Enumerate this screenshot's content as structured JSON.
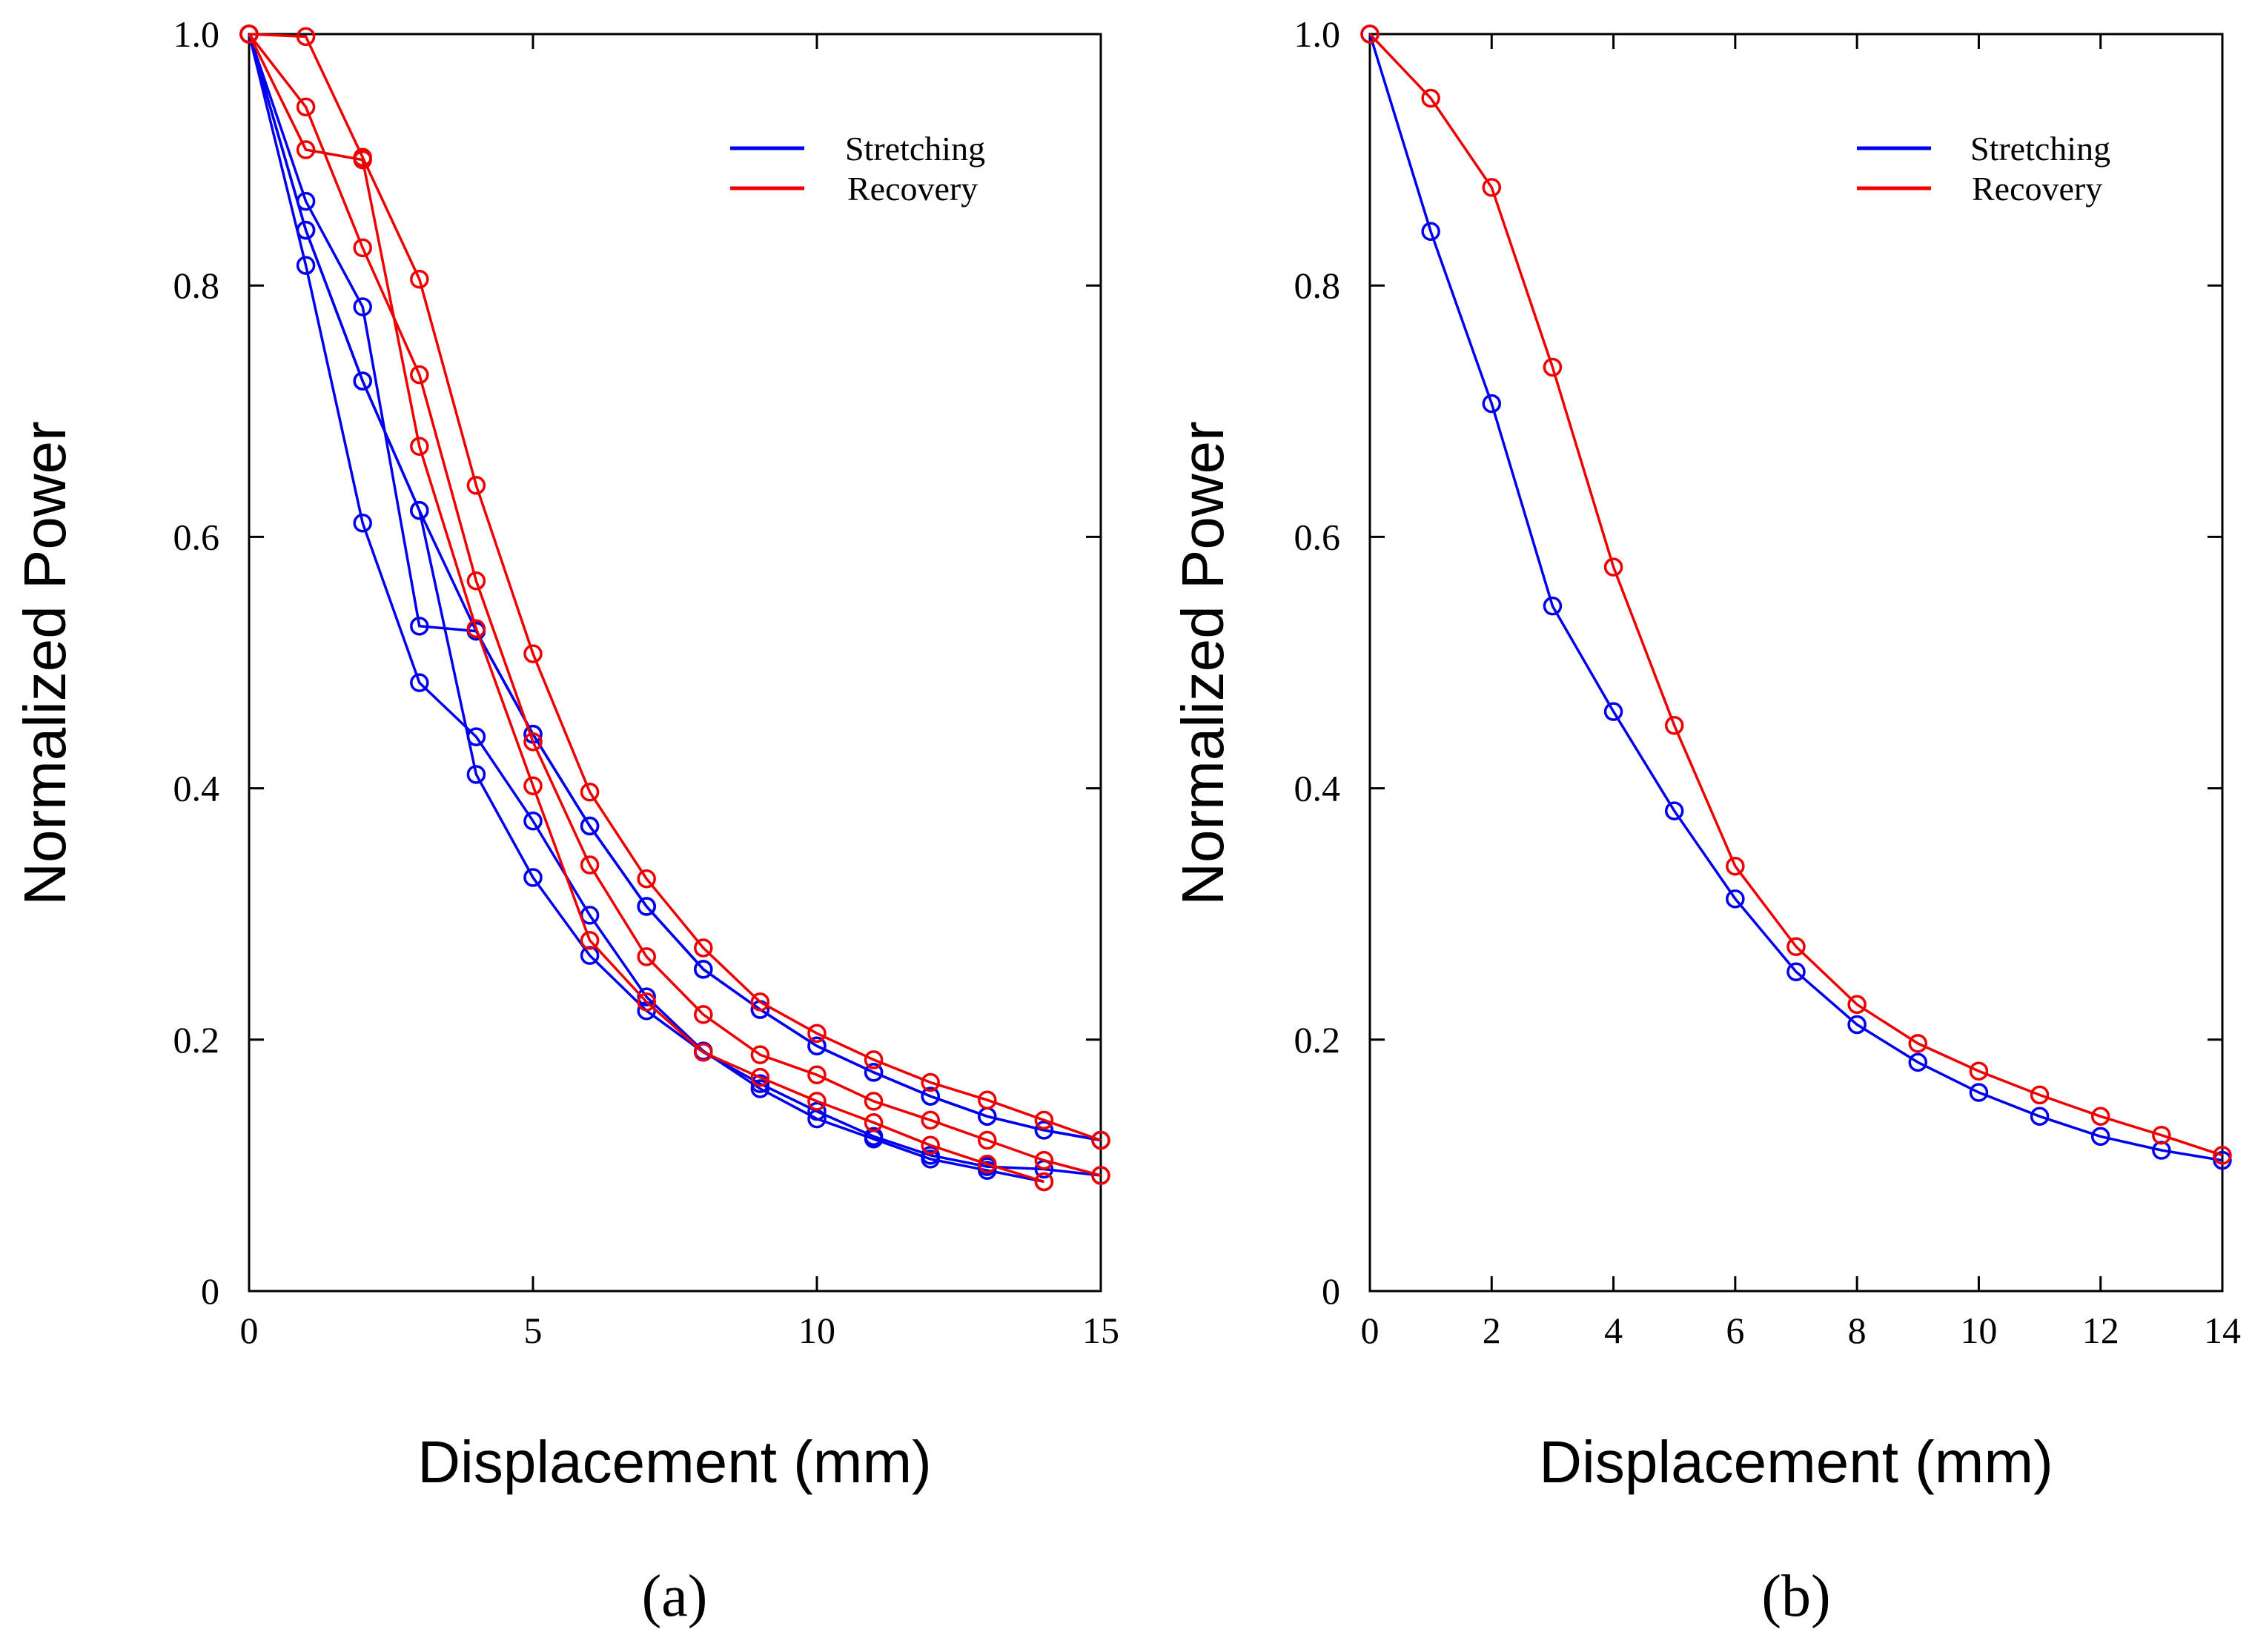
{
  "colors": {
    "stretching": "#0000ee",
    "recovery": "#ee0000"
  },
  "chart_data": [
    {
      "type": "line",
      "caption": "(a)",
      "xlabel": "Displacement (mm)",
      "ylabel": "Normalized Power",
      "xlim": [
        0,
        15
      ],
      "ylim": [
        0,
        1.0
      ],
      "xticks": [
        0,
        5,
        10,
        15
      ],
      "yticks": [
        0,
        0.2,
        0.4,
        0.6,
        0.8,
        1.0
      ],
      "ytick_labels": [
        "0",
        "0.2",
        "0.4",
        "0.6",
        "0.8",
        "1.0"
      ],
      "xtick_labels": [
        "0",
        "5",
        "10",
        "15"
      ],
      "legend": {
        "position": "top-right",
        "entries": [
          "Stretching",
          "Recovery"
        ]
      },
      "series": [
        {
          "name": "Stretching",
          "group": "stretching",
          "x": [
            0,
            1,
            2,
            3,
            4,
            5,
            6,
            7,
            8,
            9,
            10,
            11,
            12,
            13,
            14,
            15
          ],
          "y": [
            1.0,
            0.867,
            0.783,
            0.529,
            0.525,
            0.443,
            0.37,
            0.306,
            0.256,
            0.224,
            0.195,
            0.174,
            0.155,
            0.139,
            0.128,
            0.12
          ]
        },
        {
          "name": "Stretching",
          "group": "stretching",
          "x": [
            0,
            1,
            2,
            3,
            4,
            5,
            6,
            7,
            8,
            9,
            10,
            11,
            12,
            13,
            14,
            15
          ],
          "y": [
            1.0,
            0.844,
            0.724,
            0.621,
            0.525,
            0.443,
            0.37,
            0.306,
            0.256,
            0.224,
            0.195,
            0.174,
            0.155,
            0.139,
            0.128,
            0.12
          ]
        },
        {
          "name": "Stretching",
          "group": "stretching",
          "x": [
            0,
            1,
            2,
            3,
            4,
            5,
            6,
            7,
            8,
            9,
            10,
            11,
            12,
            13,
            14
          ],
          "y": [
            1.0,
            0.816,
            0.611,
            0.484,
            0.441,
            0.374,
            0.299,
            0.234,
            0.191,
            0.161,
            0.137,
            0.121,
            0.105,
            0.096,
            0.087
          ]
        },
        {
          "name": "Stretching",
          "group": "stretching",
          "x": [
            0,
            1,
            2,
            3,
            4,
            5,
            6,
            7,
            8,
            9,
            10,
            11,
            12,
            13,
            14,
            15
          ],
          "y": [
            1.0,
            0.844,
            0.724,
            0.621,
            0.411,
            0.329,
            0.267,
            0.223,
            0.19,
            0.165,
            0.143,
            0.123,
            0.108,
            0.099,
            0.097,
            0.092
          ]
        },
        {
          "name": "Recovery",
          "group": "recovery",
          "x": [
            0,
            1,
            2,
            3,
            4,
            5,
            6,
            7,
            8,
            9,
            10,
            11,
            12,
            13,
            14,
            15
          ],
          "y": [
            1.0,
            0.998,
            0.902,
            0.805,
            0.641,
            0.507,
            0.397,
            0.328,
            0.273,
            0.23,
            0.205,
            0.184,
            0.166,
            0.152,
            0.136,
            0.12
          ]
        },
        {
          "name": "Recovery",
          "group": "recovery",
          "x": [
            0,
            1,
            2,
            3,
            4,
            5,
            6,
            7,
            8,
            9,
            10,
            11,
            12,
            13,
            14,
            15
          ],
          "y": [
            1.0,
            0.942,
            0.83,
            0.729,
            0.565,
            0.437,
            0.339,
            0.266,
            0.22,
            0.188,
            0.172,
            0.151,
            0.136,
            0.12,
            0.104,
            0.092
          ]
        },
        {
          "name": "Recovery",
          "group": "recovery",
          "x": [
            0,
            1,
            2,
            3,
            4,
            5,
            6,
            7,
            8,
            9,
            10,
            11,
            12,
            13,
            14
          ],
          "y": [
            1.0,
            0.908,
            0.9,
            0.672,
            0.527,
            0.402,
            0.279,
            0.23,
            0.19,
            0.17,
            0.151,
            0.134,
            0.116,
            0.101,
            0.087
          ]
        }
      ]
    },
    {
      "type": "line",
      "caption": "(b)",
      "xlabel": "Displacement (mm)",
      "ylabel": "Normalized Power",
      "xlim": [
        0,
        14
      ],
      "ylim": [
        0,
        1.0
      ],
      "xticks": [
        0,
        2,
        4,
        6,
        8,
        10,
        12,
        14
      ],
      "yticks": [
        0,
        0.2,
        0.4,
        0.6,
        0.8,
        1.0
      ],
      "ytick_labels": [
        "0",
        "0.2",
        "0.4",
        "0.6",
        "0.8",
        "1.0"
      ],
      "xtick_labels": [
        "0",
        "2",
        "4",
        "6",
        "8",
        "10",
        "12",
        "14"
      ],
      "legend": {
        "position": "top-right",
        "entries": [
          "Stretching",
          "Recovery"
        ]
      },
      "series": [
        {
          "name": "Stretching",
          "group": "stretching",
          "x": [
            0,
            1,
            2,
            3,
            4,
            5,
            6,
            7,
            8,
            9,
            10,
            11,
            12,
            13,
            14
          ],
          "y": [
            1.0,
            0.843,
            0.706,
            0.545,
            0.461,
            0.382,
            0.312,
            0.254,
            0.212,
            0.182,
            0.158,
            0.139,
            0.123,
            0.112,
            0.104
          ]
        },
        {
          "name": "Recovery",
          "group": "recovery",
          "x": [
            0,
            1,
            2,
            3,
            4,
            5,
            6,
            7,
            8,
            9,
            10,
            11,
            12,
            13,
            14
          ],
          "y": [
            1.0,
            0.949,
            0.878,
            0.735,
            0.576,
            0.45,
            0.338,
            0.274,
            0.228,
            0.197,
            0.175,
            0.156,
            0.139,
            0.124,
            0.108
          ]
        }
      ]
    }
  ]
}
